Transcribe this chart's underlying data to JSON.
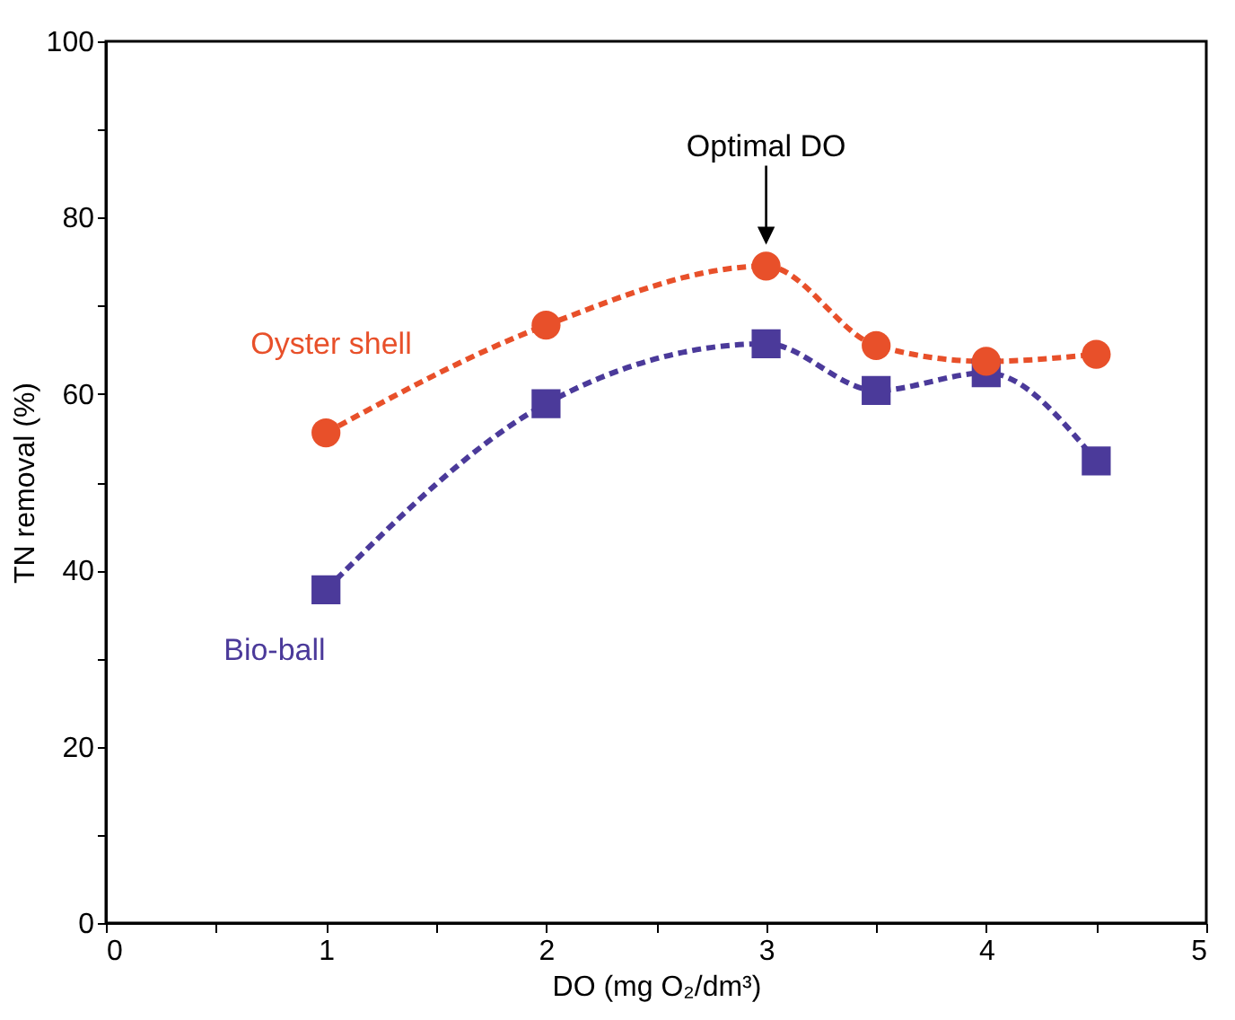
{
  "chart_data": {
    "type": "line",
    "xlabel": "DO (mg O₂/dm³)",
    "ylabel": "TN removal (%)",
    "x": [
      1,
      2,
      3,
      3.5,
      4,
      4.5
    ],
    "series": [
      {
        "name": "Oyster shell",
        "color": "#e8502a",
        "marker": "circle",
        "values": [
          55.6,
          67.8,
          74.5,
          65.5,
          63.7,
          64.5
        ]
      },
      {
        "name": "Bio-ball",
        "color": "#4b3a9a",
        "marker": "square",
        "values": [
          37.8,
          58.9,
          65.7,
          60.4,
          62.4,
          52.4
        ]
      }
    ],
    "xlim": [
      0,
      5
    ],
    "ylim": [
      0,
      100
    ],
    "xticks": [
      0,
      {
        "value": 0.5,
        "label": null
      },
      1,
      {
        "value": 1.5,
        "label": null
      },
      2,
      {
        "value": 2.5,
        "label": null
      },
      3,
      {
        "value": 3.5,
        "label": null
      },
      4,
      {
        "value": 4.5,
        "label": null
      },
      5
    ],
    "yticks": [
      0,
      {
        "value": 10,
        "label": null
      },
      20,
      {
        "value": 30,
        "label": null
      },
      40,
      {
        "value": 50,
        "label": null
      },
      60,
      {
        "value": 70,
        "label": null
      },
      80,
      {
        "value": 90,
        "label": null
      },
      100
    ],
    "line_style": "dashed",
    "grid": false,
    "annotations": [
      "Optimal DO"
    ]
  }
}
